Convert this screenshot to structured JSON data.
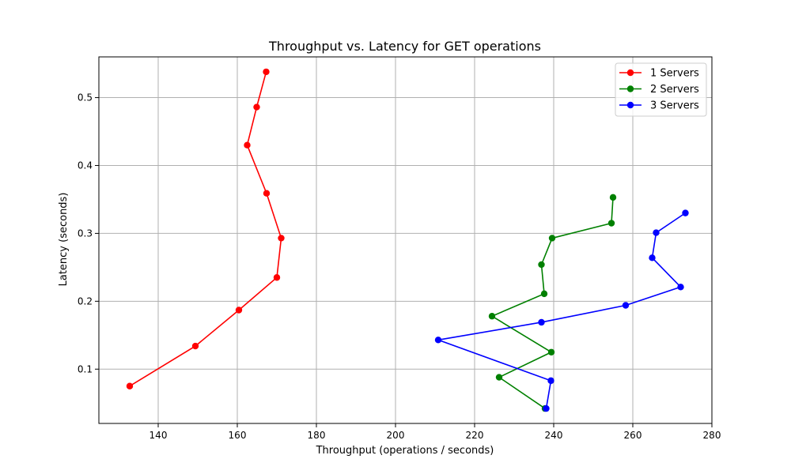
{
  "chart_data": {
    "type": "line",
    "title": "Throughput vs. Latency for GET operations",
    "xlabel": "Throughput (operations / seconds)",
    "ylabel": "Latency (seconds)",
    "xlim": [
      125,
      280
    ],
    "ylim": [
      0.02,
      0.56
    ],
    "xticks": [
      140,
      160,
      180,
      200,
      220,
      240,
      260,
      280
    ],
    "yticks": [
      0.1,
      0.2,
      0.3,
      0.4,
      0.5
    ],
    "grid": true,
    "legend_position": "top-right",
    "series": [
      {
        "name": "1 Servers",
        "color": "#ff0000",
        "points": [
          [
            132.8,
            0.075
          ],
          [
            149.4,
            0.134
          ],
          [
            160.4,
            0.187
          ],
          [
            170.0,
            0.235
          ],
          [
            171.1,
            0.293
          ],
          [
            167.4,
            0.359
          ],
          [
            162.5,
            0.43
          ],
          [
            164.9,
            0.486
          ],
          [
            167.3,
            0.538
          ]
        ]
      },
      {
        "name": "2 Servers",
        "color": "#008000",
        "points": [
          [
            237.8,
            0.042
          ],
          [
            226.2,
            0.088
          ],
          [
            239.4,
            0.125
          ],
          [
            224.4,
            0.178
          ],
          [
            237.6,
            0.211
          ],
          [
            236.9,
            0.254
          ],
          [
            239.6,
            0.293
          ],
          [
            254.6,
            0.315
          ],
          [
            255.0,
            0.353
          ]
        ]
      },
      {
        "name": "3 Servers",
        "color": "#0000ff",
        "points": [
          [
            238.1,
            0.042
          ],
          [
            239.3,
            0.083
          ],
          [
            210.8,
            0.143
          ],
          [
            236.9,
            0.169
          ],
          [
            258.2,
            0.194
          ],
          [
            272.1,
            0.221
          ],
          [
            264.9,
            0.264
          ],
          [
            265.9,
            0.301
          ],
          [
            273.3,
            0.33
          ]
        ]
      }
    ]
  }
}
